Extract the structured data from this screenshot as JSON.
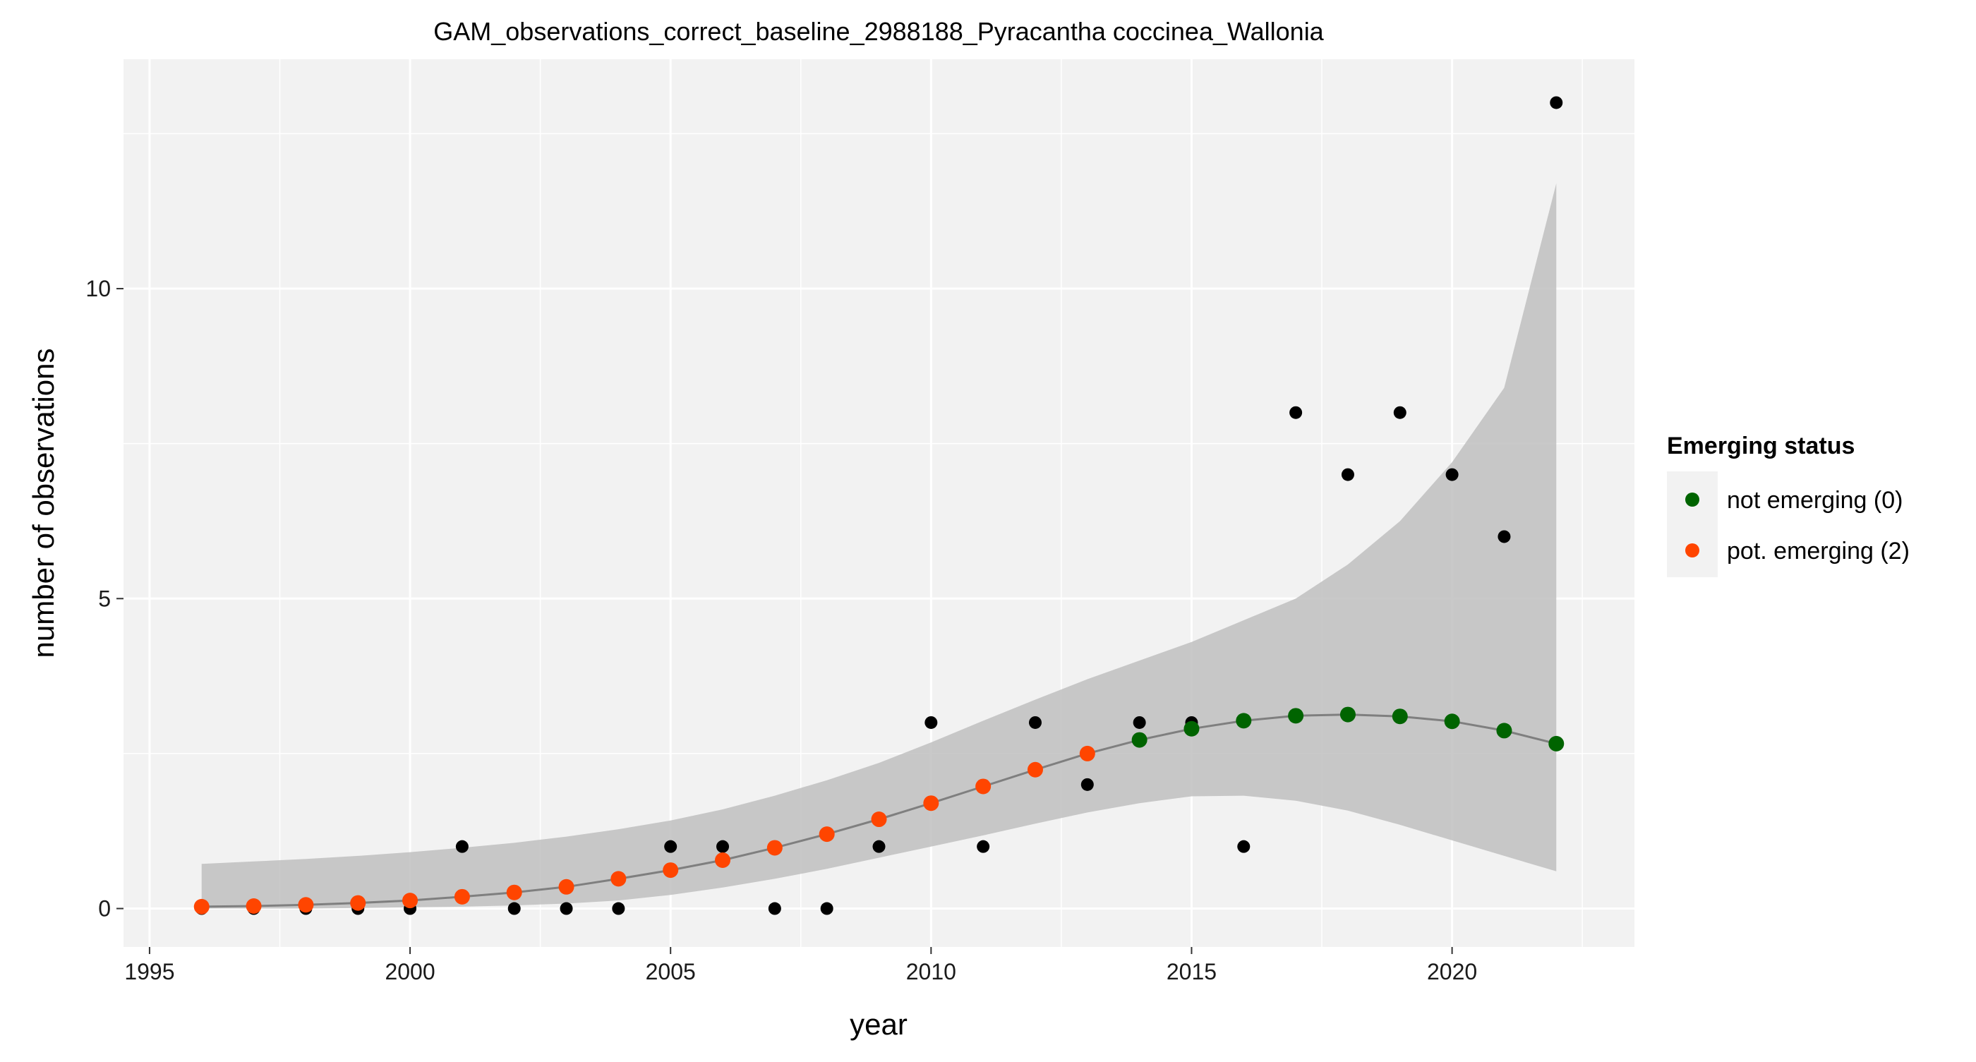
{
  "chart_data": {
    "type": "scatter",
    "title": "GAM_observations_correct_baseline_2988188_Pyracantha coccinea_Wallonia",
    "xlabel": "year",
    "ylabel": "number of observations",
    "xlim": [
      1994.5,
      2023.5
    ],
    "ylim": [
      -0.62,
      13.7
    ],
    "x_ticks": [
      1995,
      2000,
      2005,
      2010,
      2015,
      2020
    ],
    "y_ticks": [
      0,
      5,
      10
    ],
    "grid": true,
    "legend_position": "right",
    "observations": {
      "x": [
        1996,
        1997,
        1998,
        1999,
        2000,
        2001,
        2002,
        2003,
        2004,
        2005,
        2006,
        2007,
        2008,
        2009,
        2010,
        2011,
        2012,
        2013,
        2014,
        2015,
        2016,
        2017,
        2018,
        2019,
        2020,
        2021,
        2022
      ],
      "y": [
        0,
        0,
        0,
        0,
        0,
        1,
        0,
        0,
        0,
        1,
        1,
        0,
        0,
        1,
        3,
        1,
        3,
        2,
        3,
        3,
        1,
        8,
        7,
        8,
        7,
        6,
        13
      ]
    },
    "fit": {
      "x": [
        1996,
        1997,
        1998,
        1999,
        2000,
        2001,
        2002,
        2003,
        2004,
        2005,
        2006,
        2007,
        2008,
        2009,
        2010,
        2011,
        2012,
        2013,
        2014,
        2015,
        2016,
        2017,
        2018,
        2019,
        2020,
        2021,
        2022
      ],
      "y": [
        0.03,
        0.04,
        0.06,
        0.09,
        0.13,
        0.19,
        0.26,
        0.35,
        0.48,
        0.62,
        0.78,
        0.98,
        1.2,
        1.44,
        1.7,
        1.97,
        2.24,
        2.5,
        2.72,
        2.9,
        3.03,
        3.11,
        3.13,
        3.1,
        3.02,
        2.87,
        2.66
      ],
      "emerging_status": [
        2,
        2,
        2,
        2,
        2,
        2,
        2,
        2,
        2,
        2,
        2,
        2,
        2,
        2,
        2,
        2,
        2,
        2,
        0,
        0,
        0,
        0,
        0,
        0,
        0,
        0,
        0
      ]
    },
    "confidence_band": {
      "x": [
        1996,
        1997,
        1998,
        1999,
        2000,
        2001,
        2002,
        2003,
        2004,
        2005,
        2006,
        2007,
        2008,
        2009,
        2010,
        2011,
        2012,
        2013,
        2014,
        2015,
        2016,
        2017,
        2018,
        2019,
        2020,
        2021,
        2022
      ],
      "lower": [
        0.0,
        0.0,
        0.0,
        0.01,
        0.02,
        0.03,
        0.05,
        0.08,
        0.13,
        0.22,
        0.34,
        0.48,
        0.64,
        0.82,
        1.0,
        1.18,
        1.37,
        1.55,
        1.7,
        1.81,
        1.82,
        1.74,
        1.58,
        1.35,
        1.1,
        0.85,
        0.6
      ],
      "upper": [
        0.72,
        0.76,
        0.8,
        0.85,
        0.91,
        0.98,
        1.06,
        1.16,
        1.28,
        1.42,
        1.6,
        1.82,
        2.07,
        2.35,
        2.68,
        3.03,
        3.37,
        3.7,
        4.0,
        4.3,
        4.65,
        5.0,
        5.55,
        6.25,
        7.2,
        8.4,
        11.7
      ]
    },
    "legend": {
      "title": "Emerging status",
      "items": [
        {
          "label": "not emerging (0)",
          "status": 0,
          "color": "#006400"
        },
        {
          "label": "pot. emerging (2)",
          "status": 2,
          "color": "#FF4500"
        }
      ]
    },
    "colors": {
      "panel_background": "#f2f2f2",
      "grid_major": "#ffffff",
      "ribbon": "#bfbfbf",
      "fit_line": "#7f7f7f",
      "observation_point": "#000000"
    }
  }
}
